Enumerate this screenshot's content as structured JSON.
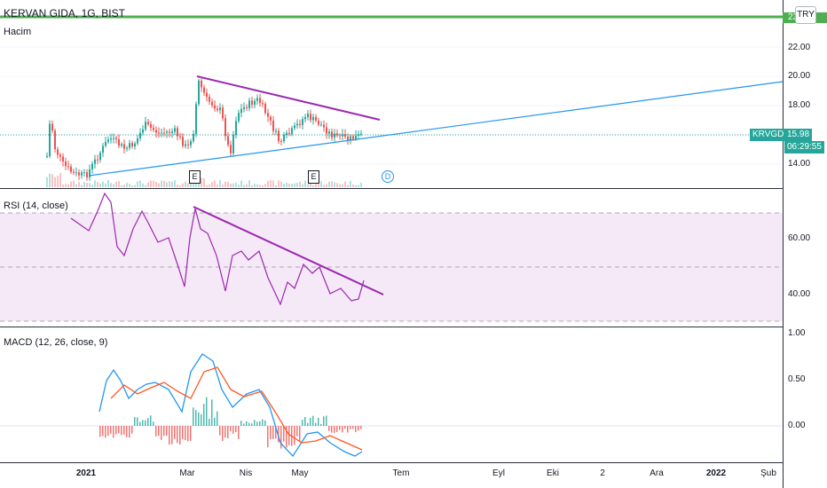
{
  "header": {
    "symbol_title": "KERVAN GIDA, 1G, BIST",
    "volume_label": "Hacim"
  },
  "currency_button": "TRY",
  "price_axis": {
    "green_level_label": "23",
    "ticks": [
      "22.00",
      "20.00",
      "18.00",
      "14.00"
    ],
    "last_price_ticker": "KRVGD",
    "last_price": "15.98",
    "countdown": "06:29:55"
  },
  "markers": {
    "earnings_label": "E",
    "dividend_label": "D"
  },
  "rsi": {
    "title": "RSI (14, close)",
    "ticks": [
      "60.00",
      "40.00"
    ]
  },
  "macd": {
    "title": "MACD (12, 26, close, 9)",
    "ticks": [
      "1.00",
      "0.50",
      "0.00"
    ]
  },
  "time_axis": {
    "labels": [
      "2021",
      "Mar",
      "Nis",
      "May",
      "Tem",
      "Eyl",
      "Eki",
      "2",
      "Ara",
      "2022",
      "Şub"
    ]
  },
  "colors": {
    "up": "#26a69a",
    "down": "#ef5350",
    "trend_purple": "#9c27b0",
    "trend_blue": "#2196f3",
    "level_green": "#4caf50",
    "rsi_line": "#9c27b0",
    "macd_line": "#2196f3",
    "signal_line": "#ff5722"
  }
}
